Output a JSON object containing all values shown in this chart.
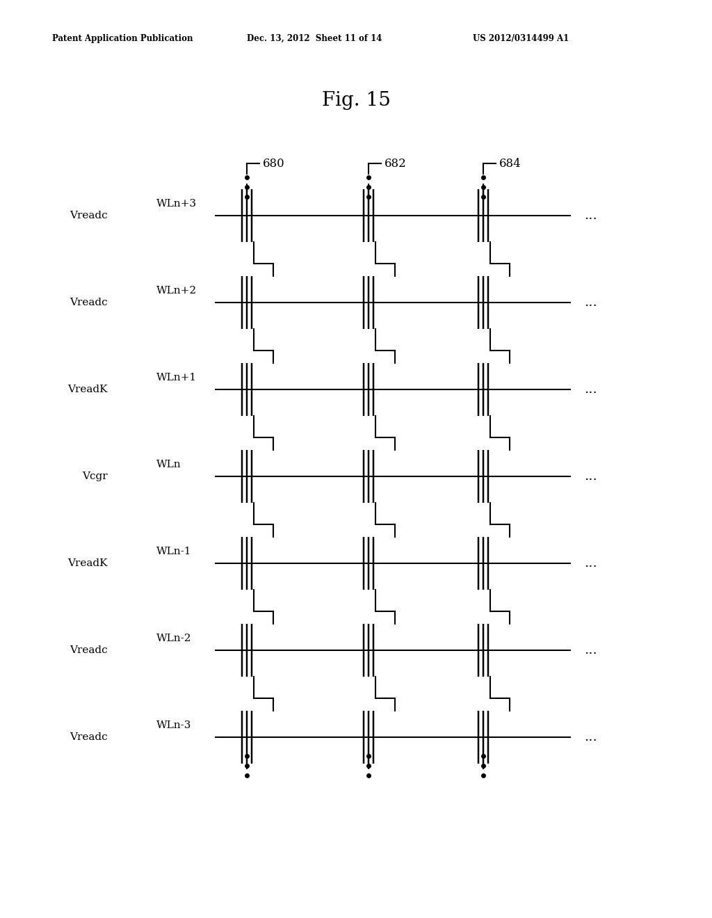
{
  "fig_title": "Fig. 15",
  "header_left": "Patent Application Publication",
  "header_mid": "Dec. 13, 2012  Sheet 11 of 14",
  "header_right": "US 2012/0314499 A1",
  "wordlines": [
    "WLn+3",
    "WLn+2",
    "WLn+1",
    "WLn",
    "WLn-1",
    "WLn-2",
    "WLn-3"
  ],
  "voltage_labels": [
    "Vreadc",
    "Vreadc",
    "VreadK",
    "Vcgr",
    "VreadK",
    "Vreadc",
    "Vreadc"
  ],
  "col_labels": [
    "680",
    "682",
    "684"
  ],
  "lw": 1.5,
  "bg_color": "#ffffff",
  "line_color": "#000000",
  "header_fontsize": 8.5,
  "title_fontsize": 20,
  "label_fontsize": 11,
  "wl_label_fontsize": 11,
  "col_label_fontsize": 12,
  "dots_fontsize": 14
}
